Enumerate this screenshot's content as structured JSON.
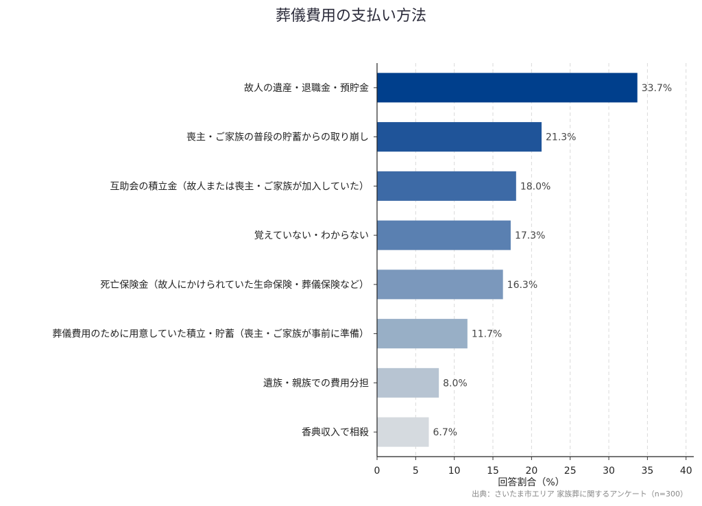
{
  "chart_data": {
    "type": "bar",
    "orientation": "horizontal",
    "title": "葬儀費用の支払い方法",
    "xlabel": "回答割合（%）",
    "ylabel": "",
    "xlim": [
      0,
      41
    ],
    "xticks": [
      0,
      5,
      10,
      15,
      20,
      25,
      30,
      35,
      40
    ],
    "grid": "vertical-dashed",
    "categories": [
      "故人の遺産・退職金・預貯金",
      "喪主・ご家族の普段の貯蓄からの取り崩し",
      "互助会の積立金（故人または喪主・ご家族が加入していた）",
      "覚えていない・わからない",
      "死亡保険金（故人にかけられていた生命保険・葬儀保険など）",
      "葬儀費用のために用意していた積立・貯蓄（喪主・ご家族が事前に準備）",
      "遺族・親族での費用分担",
      "香典収入で相殺"
    ],
    "values": [
      33.7,
      21.3,
      18.0,
      17.3,
      16.3,
      11.7,
      8.0,
      6.7
    ],
    "value_labels": [
      "33.7%",
      "21.3%",
      "18.0%",
      "17.3%",
      "16.3%",
      "11.7%",
      "8.0%",
      "6.7%"
    ],
    "colors": [
      "#003f8c",
      "#1f5499",
      "#3d6aa6",
      "#5a80b1",
      "#7b98bc",
      "#98afc6",
      "#b7c4d2",
      "#d5dadf"
    ],
    "source": "出典：さいたま市エリア 家族葬に関するアンケート（n=300）"
  }
}
